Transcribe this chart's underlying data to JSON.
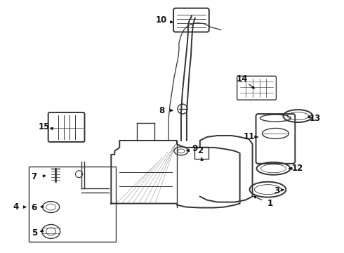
{
  "bg_color": "#ffffff",
  "line_color": "#333333",
  "label_color": "#111111",
  "fig_width": 4.9,
  "fig_height": 3.6,
  "dpi": 100,
  "xlim": [
    0,
    490
  ],
  "ylim": [
    0,
    360
  ]
}
